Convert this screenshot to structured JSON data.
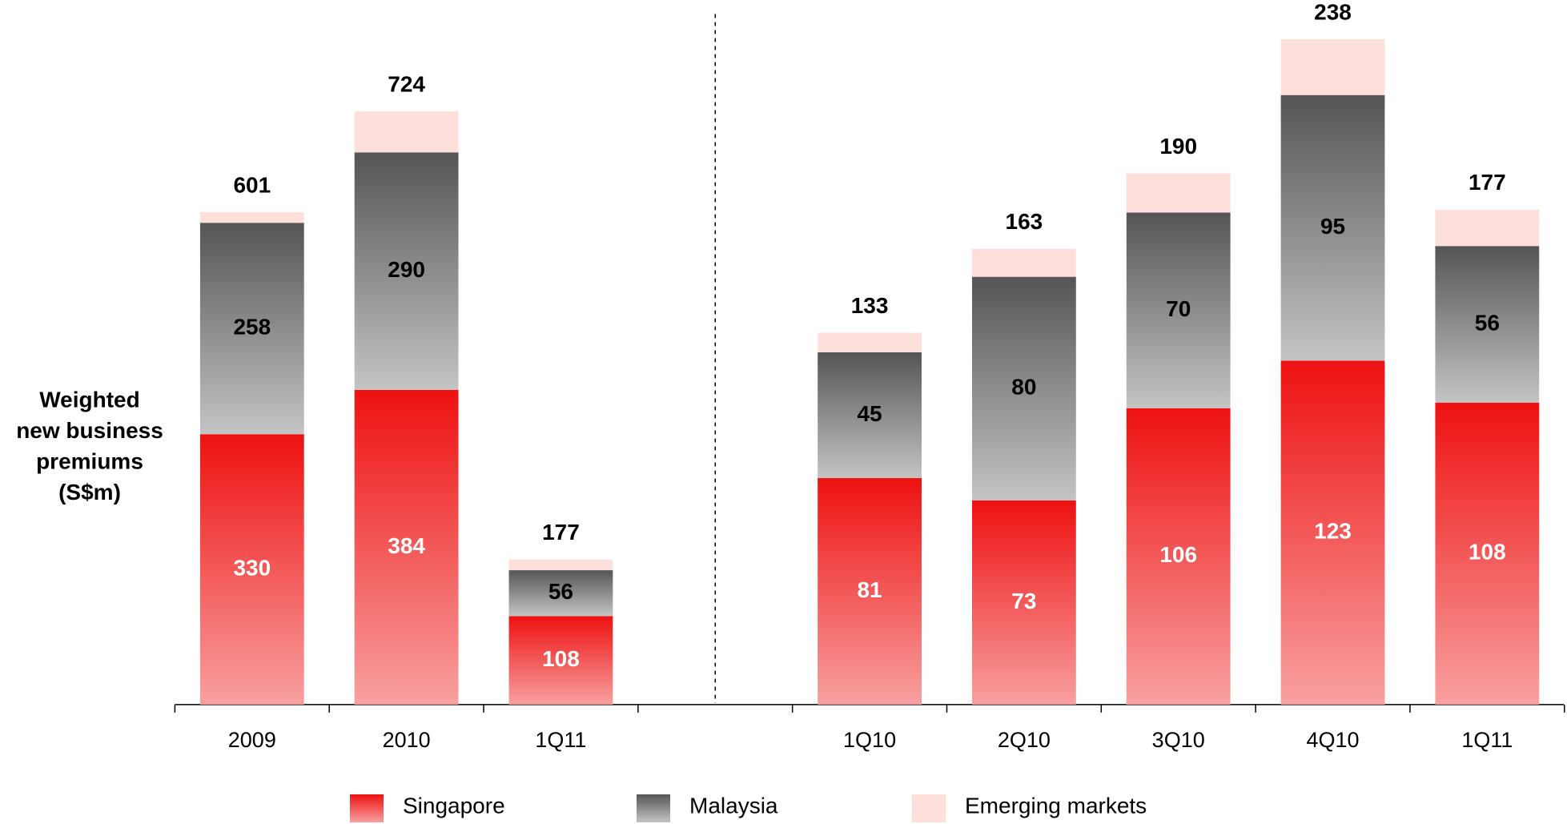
{
  "chart_data": [
    {
      "type": "stacked_bar",
      "y_label": [
        "Weighted",
        "new business",
        "premiums",
        "(S$m)"
      ],
      "categories": [
        "2009",
        "2010",
        "1Q11",
        null
      ],
      "series": [
        {
          "name": "Singapore",
          "color": "#ee1111",
          "values": [
            330,
            384,
            108,
            null
          ]
        },
        {
          "name": "Malaysia",
          "color": "#555555",
          "values": [
            258,
            290,
            56,
            null
          ]
        },
        {
          "name": "Emerging markets",
          "color": "#fde0dc",
          "values": [
            13,
            50,
            13,
            null
          ]
        }
      ],
      "totals": [
        601,
        724,
        177,
        null
      ],
      "ylim": [
        0,
        860
      ]
    },
    {
      "type": "stacked_bar",
      "categories": [
        "1Q10",
        "2Q10",
        "3Q10",
        "4Q10",
        "1Q11"
      ],
      "series": [
        {
          "name": "Singapore",
          "color": "#ee1111",
          "values": [
            81,
            73,
            106,
            123,
            108
          ]
        },
        {
          "name": "Malaysia",
          "color": "#555555",
          "values": [
            45,
            80,
            70,
            95,
            56
          ]
        },
        {
          "name": "Emerging markets",
          "color": "#fde0dc",
          "values": [
            7,
            10,
            14,
            20,
            13
          ]
        }
      ],
      "totals": [
        133,
        163,
        190,
        238,
        177
      ],
      "ylim": [
        0,
        252
      ]
    }
  ]
}
